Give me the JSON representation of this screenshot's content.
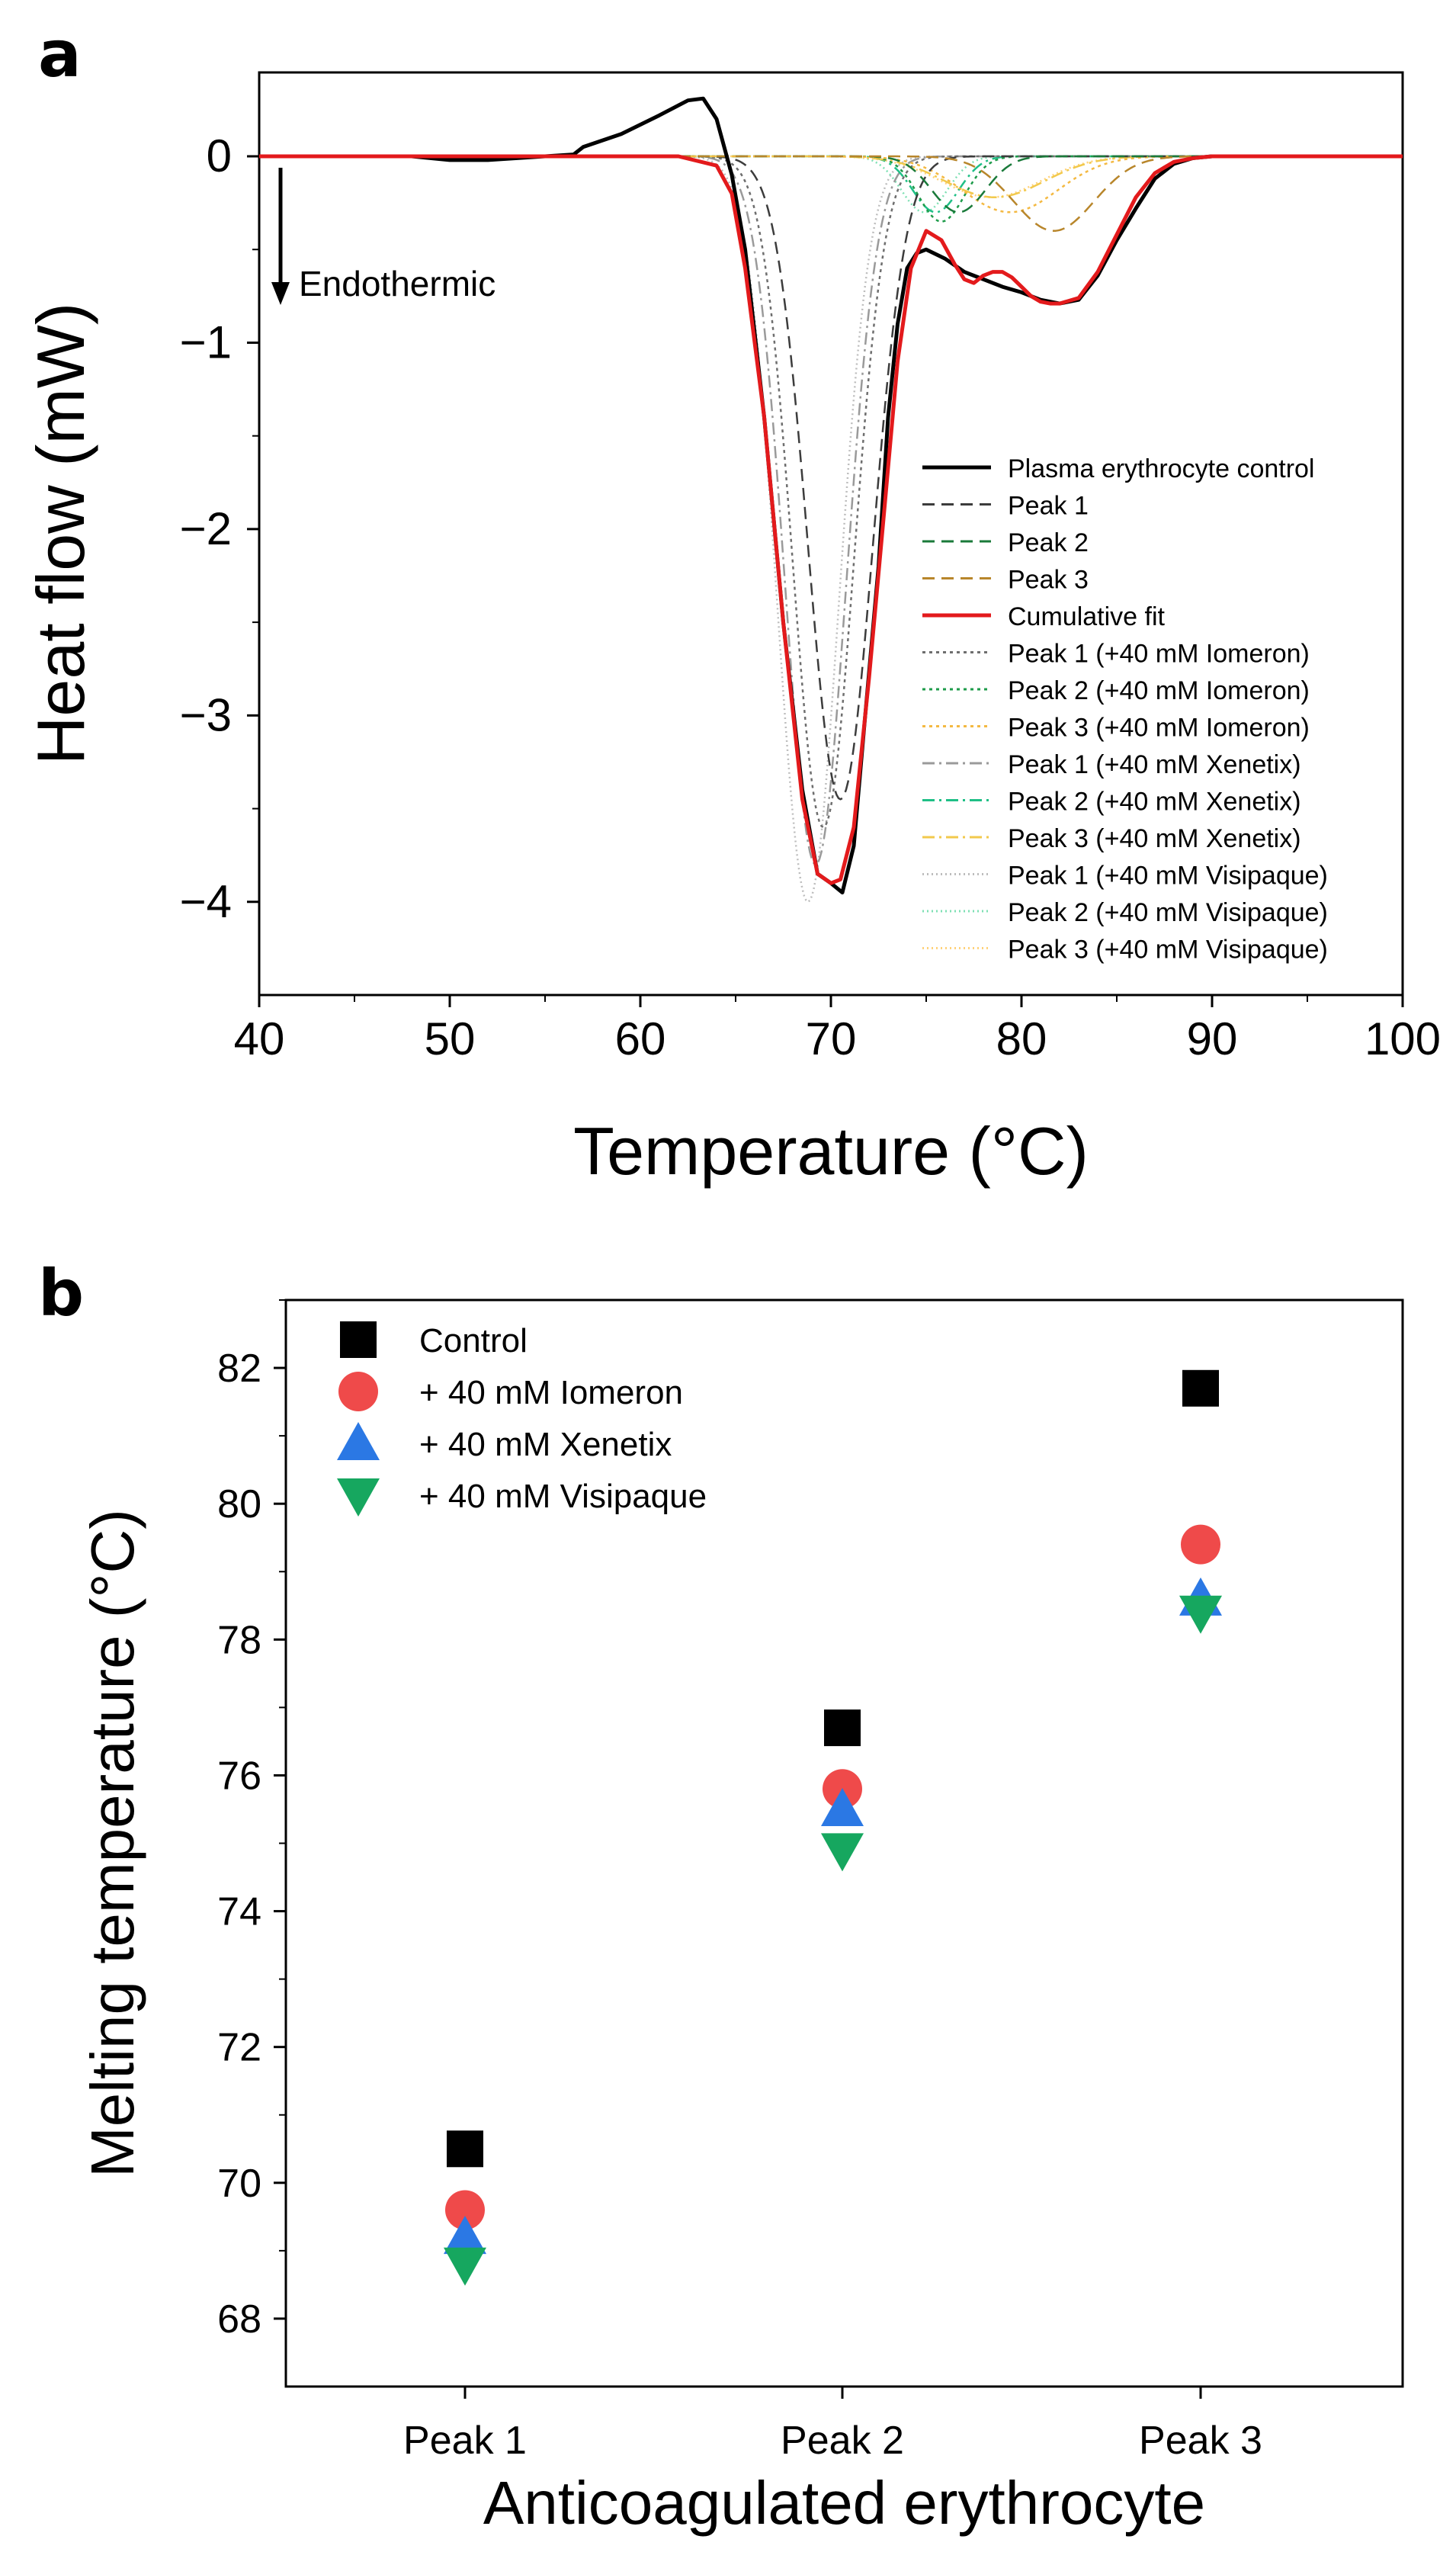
{
  "colors": {
    "control": "#000000",
    "peak1": "#3c3c3c",
    "peak2": "#1a7a3a",
    "peak3": "#b8862b",
    "cumulative": "#e31a1c",
    "peak1_iomeron": "#6e6e6e",
    "peak2_iomeron": "#1e9b4a",
    "peak3_iomeron": "#f4b942",
    "peak1_xenetix": "#9a9a9a",
    "peak2_xenetix": "#1fbf86",
    "peak3_xenetix": "#f2c94c",
    "peak1_visipaque": "#bdbdbd",
    "peak2_visipaque": "#7fe0b4",
    "peak3_visipaque": "#ffd27a",
    "marker_control": "#000000",
    "marker_iomeron": "#ef4a4a",
    "marker_xenetix": "#2b78e4",
    "marker_visipaque": "#16a75f"
  },
  "chart_data": [
    {
      "panel": "a",
      "type": "line",
      "title": "",
      "xlabel": "Temperature (°C)",
      "ylabel": "Heat flow (mW)",
      "xlim": [
        40,
        100
      ],
      "ylim": [
        -4.5,
        0.45
      ],
      "xticks": [
        40,
        50,
        60,
        70,
        80,
        90,
        100
      ],
      "yticks": [
        0,
        -1,
        -2,
        -3,
        -4
      ],
      "grid": false,
      "legend_position": "lower-right",
      "annotation": "Endothermic",
      "series": [
        {
          "name": "Plasma erythrocyte control",
          "key": "control",
          "style": "solid",
          "width": 5,
          "x": [
            40,
            45,
            48,
            50,
            52,
            55,
            56.5,
            57,
            59,
            61,
            62.5,
            63.3,
            64,
            64.8,
            65.5,
            66.5,
            67.5,
            68.5,
            69.3,
            70,
            70.6,
            71.2,
            71.8,
            72.5,
            73,
            73.5,
            74,
            74.5,
            75,
            76,
            77,
            78,
            79,
            80,
            81,
            82,
            83,
            84,
            85,
            86,
            87,
            88,
            89,
            90,
            92,
            95,
            100
          ],
          "y": [
            0,
            0,
            0,
            -0.02,
            -0.02,
            0,
            0.01,
            0.05,
            0.12,
            0.22,
            0.3,
            0.31,
            0.2,
            -0.1,
            -0.5,
            -1.4,
            -2.5,
            -3.4,
            -3.85,
            -3.9,
            -3.95,
            -3.7,
            -3.0,
            -2.2,
            -1.4,
            -0.9,
            -0.6,
            -0.52,
            -0.5,
            -0.55,
            -0.62,
            -0.66,
            -0.7,
            -0.73,
            -0.77,
            -0.79,
            -0.77,
            -0.64,
            -0.45,
            -0.28,
            -0.12,
            -0.04,
            -0.01,
            0,
            0,
            0,
            0
          ]
        },
        {
          "name": "Peak 1",
          "key": "peak1",
          "style": "dash",
          "width": 2.5,
          "gauss": [
            70.5,
            3.45,
            1.7
          ]
        },
        {
          "name": "Peak 2",
          "key": "peak2",
          "style": "dash",
          "width": 2.5,
          "gauss": [
            76.7,
            0.3,
            1.4
          ]
        },
        {
          "name": "Peak 3",
          "key": "peak3",
          "style": "dash",
          "width": 2.5,
          "gauss": [
            81.7,
            0.4,
            2.1
          ]
        },
        {
          "name": "Cumulative fit",
          "key": "cumulative",
          "style": "solid",
          "width": 5,
          "x": [
            40,
            62,
            64,
            64.8,
            65.5,
            66.5,
            67.5,
            68.5,
            69.3,
            70,
            70.5,
            71.2,
            72,
            72.8,
            73.5,
            74.2,
            75,
            75.8,
            76.5,
            77,
            77.5,
            78,
            78.5,
            79,
            79.5,
            80,
            80.5,
            81,
            81.5,
            82,
            83,
            84,
            85,
            86,
            87,
            88,
            89,
            90,
            100
          ],
          "y": [
            0,
            0,
            -0.05,
            -0.2,
            -0.6,
            -1.4,
            -2.5,
            -3.45,
            -3.85,
            -3.9,
            -3.88,
            -3.6,
            -2.8,
            -1.9,
            -1.1,
            -0.6,
            -0.4,
            -0.45,
            -0.58,
            -0.66,
            -0.68,
            -0.64,
            -0.62,
            -0.62,
            -0.65,
            -0.7,
            -0.75,
            -0.78,
            -0.79,
            -0.79,
            -0.76,
            -0.62,
            -0.42,
            -0.22,
            -0.09,
            -0.03,
            -0.01,
            0,
            0
          ]
        },
        {
          "name": "Peak 1 (+40 mM Iomeron)",
          "key": "peak1_iomeron",
          "style": "dot",
          "width": 2.5,
          "gauss": [
            69.6,
            3.6,
            1.6
          ]
        },
        {
          "name": "Peak 2 (+40 mM Iomeron)",
          "key": "peak2_iomeron",
          "style": "dot",
          "width": 2.5,
          "gauss": [
            75.8,
            0.35,
            1.2
          ]
        },
        {
          "name": "Peak 3 (+40 mM Iomeron)",
          "key": "peak3_iomeron",
          "style": "dot",
          "width": 2.5,
          "gauss": [
            79.4,
            0.3,
            2.5
          ]
        },
        {
          "name": "Peak 1 (+40 mM Xenetix)",
          "key": "peak1_xenetix",
          "style": "dashdot",
          "width": 2.5,
          "gauss": [
            69.2,
            3.8,
            1.6
          ]
        },
        {
          "name": "Peak 2 (+40 mM Xenetix)",
          "key": "peak2_xenetix",
          "style": "dashdot",
          "width": 2.5,
          "gauss": [
            75.5,
            0.3,
            1.2
          ]
        },
        {
          "name": "Peak 3 (+40 mM Xenetix)",
          "key": "peak3_xenetix",
          "style": "dashdot",
          "width": 2.5,
          "gauss": [
            78.6,
            0.22,
            2.6
          ]
        },
        {
          "name": "Peak 1 (+40 mM Visipaque)",
          "key": "peak1_visipaque",
          "style": "fine",
          "width": 2.5,
          "gauss": [
            68.8,
            4.0,
            1.6
          ]
        },
        {
          "name": "Peak 2 (+40 mM Visipaque)",
          "key": "peak2_visipaque",
          "style": "fine",
          "width": 2.5,
          "gauss": [
            74.9,
            0.3,
            1.2
          ]
        },
        {
          "name": "Peak 3 (+40 mM Visipaque)",
          "key": "peak3_visipaque",
          "style": "fine",
          "width": 2.5,
          "gauss": [
            78.4,
            0.22,
            2.6
          ]
        }
      ]
    },
    {
      "panel": "b",
      "type": "scatter",
      "title": "",
      "xlabel": "Anticoagulated erythrocyte",
      "ylabel": "Melting temperature (°C)",
      "categories": [
        "Peak 1",
        "Peak 2",
        "Peak 3"
      ],
      "ylim": [
        67,
        83
      ],
      "yticks": [
        68,
        70,
        72,
        74,
        76,
        78,
        80,
        82
      ],
      "grid": false,
      "legend_position": "top-left",
      "series": [
        {
          "name": "Control",
          "key": "marker_control",
          "marker": "square",
          "values": [
            70.5,
            76.7,
            81.7
          ]
        },
        {
          "name": "+ 40 mM Iomeron",
          "key": "marker_iomeron",
          "marker": "circle",
          "values": [
            69.6,
            75.8,
            79.4
          ]
        },
        {
          "name": "+ 40 mM Xenetix",
          "key": "marker_xenetix",
          "marker": "triangle-up",
          "values": [
            69.2,
            75.5,
            78.6
          ]
        },
        {
          "name": "+ 40 mM Visipaque",
          "key": "marker_visipaque",
          "marker": "triangle-down",
          "values": [
            68.8,
            74.9,
            78.4
          ]
        }
      ]
    }
  ],
  "labels": {
    "panel_a": "a",
    "panel_b": "b"
  }
}
